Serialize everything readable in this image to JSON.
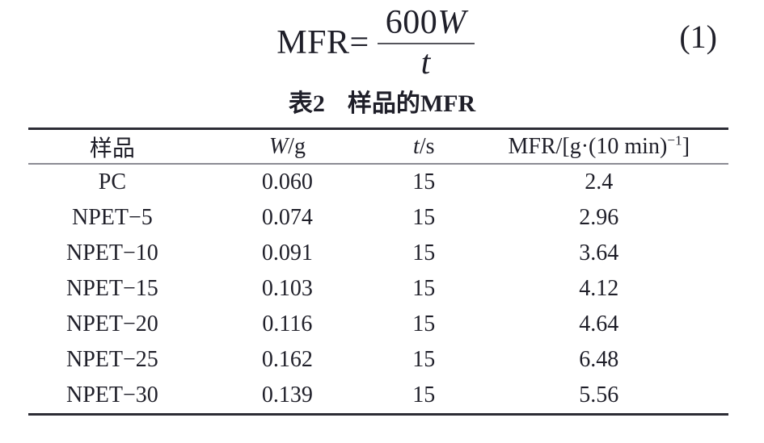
{
  "colors": {
    "text": "#1f1f29",
    "rule_heavy": "#2c2c35",
    "rule_light": "#8b8b94",
    "fraction_bar": "#55555c",
    "background": "#ffffff"
  },
  "equation": {
    "lhs": "MFR=",
    "numerator_coefficient": "600",
    "numerator_variable": "W",
    "denominator_variable": "t",
    "number": "(1)"
  },
  "table": {
    "title_label": "表2",
    "title_text": "样品的MFR",
    "headers": {
      "sample": "样品",
      "w_variable": "W",
      "w_unit": "/g",
      "t_variable": "t",
      "t_unit": "/s",
      "mfr_main": "MFR/[g·(10 min)",
      "mfr_superscript": "−1",
      "mfr_close": "]"
    },
    "rows": [
      {
        "sample": "PC",
        "w": "0.060",
        "t": "15",
        "mfr": "2.4"
      },
      {
        "sample": "NPET−5",
        "w": "0.074",
        "t": "15",
        "mfr": "2.96"
      },
      {
        "sample": "NPET−10",
        "w": "0.091",
        "t": "15",
        "mfr": "3.64"
      },
      {
        "sample": "NPET−15",
        "w": "0.103",
        "t": "15",
        "mfr": "4.12"
      },
      {
        "sample": "NPET−20",
        "w": "0.116",
        "t": "15",
        "mfr": "4.64"
      },
      {
        "sample": "NPET−25",
        "w": "0.162",
        "t": "15",
        "mfr": "6.48"
      },
      {
        "sample": "NPET−30",
        "w": "0.139",
        "t": "15",
        "mfr": "5.56"
      }
    ]
  },
  "chart_data": {
    "type": "table",
    "title": "表2 样品的MFR",
    "columns": [
      "样品",
      "W/g",
      "t/s",
      "MFR/[g·(10 min)−1]"
    ],
    "rows": [
      [
        "PC",
        0.06,
        15,
        2.4
      ],
      [
        "NPET−5",
        0.074,
        15,
        2.96
      ],
      [
        "NPET−10",
        0.091,
        15,
        3.64
      ],
      [
        "NPET−15",
        0.103,
        15,
        4.12
      ],
      [
        "NPET−20",
        0.116,
        15,
        4.64
      ],
      [
        "NPET−25",
        0.162,
        15,
        6.48
      ],
      [
        "NPET−30",
        0.139,
        15,
        5.56
      ]
    ]
  }
}
